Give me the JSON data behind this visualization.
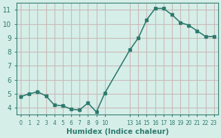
{
  "x": [
    0,
    1,
    2,
    3,
    4,
    5,
    6,
    7,
    8,
    9,
    10,
    13,
    14,
    15,
    16,
    17,
    18,
    19,
    20,
    21,
    22,
    23
  ],
  "y": [
    4.8,
    5.0,
    5.15,
    4.85,
    4.2,
    4.15,
    3.9,
    3.85,
    4.35,
    3.7,
    5.05,
    8.15,
    9.0,
    10.3,
    11.1,
    11.1,
    10.65,
    10.1,
    9.9,
    9.5,
    9.1,
    9.1
  ],
  "line_color": "#2d7a6e",
  "marker_color": "#2d7a6e",
  "bg_color": "#d6eee8",
  "grid_color": "#c8b8b8",
  "xlabel": "Humidex (Indice chaleur)",
  "xlim": [
    -0.5,
    23.5
  ],
  "ylim": [
    3.5,
    11.5
  ],
  "yticks": [
    4,
    5,
    6,
    7,
    8,
    9,
    10,
    11
  ],
  "xtick_positions": [
    0,
    1,
    2,
    3,
    4,
    5,
    6,
    7,
    8,
    9,
    10,
    13,
    14,
    15,
    16,
    17,
    18,
    19,
    20,
    21,
    22,
    23
  ],
  "xtick_labels": [
    "0",
    "1",
    "2",
    "3",
    "4",
    "5",
    "6",
    "7",
    "8",
    "9",
    "10",
    "13",
    "14",
    "15",
    "16",
    "17",
    "18",
    "19",
    "20",
    "21",
    "22",
    "23"
  ],
  "figsize": [
    3.2,
    2.0
  ],
  "dpi": 100
}
